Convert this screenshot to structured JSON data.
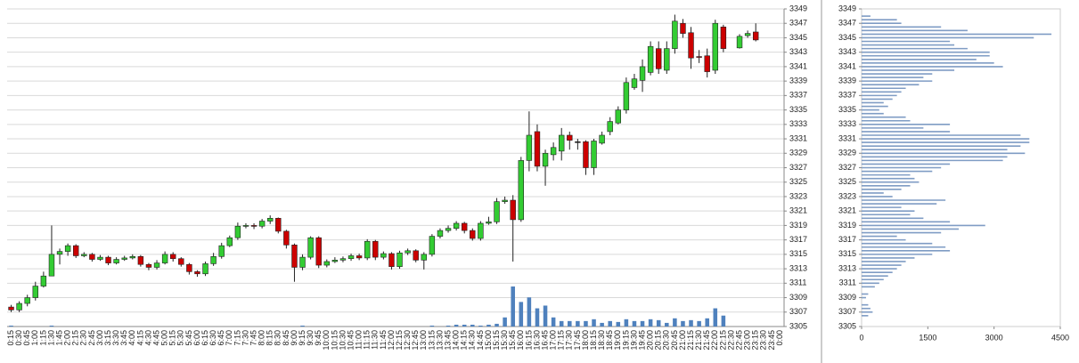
{
  "chart_data": [
    {
      "type": "candlestick",
      "categories": [
        "0:15",
        "0:30",
        "0:45",
        "1:00",
        "1:15",
        "1:30",
        "1:45",
        "2:00",
        "2:15",
        "2:30",
        "2:45",
        "3:00",
        "3:15",
        "3:30",
        "3:45",
        "4:00",
        "4:15",
        "4:30",
        "4:45",
        "5:00",
        "5:15",
        "5:30",
        "5:45",
        "6:00",
        "6:15",
        "6:30",
        "6:45",
        "7:00",
        "7:15",
        "7:30",
        "7:45",
        "8:00",
        "8:15",
        "8:30",
        "8:45",
        "9:00",
        "9:15",
        "9:30",
        "9:45",
        "10:00",
        "10:15",
        "10:30",
        "10:45",
        "11:00",
        "11:15",
        "11:30",
        "11:45",
        "12:00",
        "12:15",
        "12:30",
        "12:45",
        "13:00",
        "13:15",
        "13:30",
        "13:45",
        "14:00",
        "14:15",
        "14:30",
        "14:45",
        "15:00",
        "15:15",
        "15:30",
        "15:45",
        "16:00",
        "16:15",
        "16:30",
        "16:45",
        "17:00",
        "17:15",
        "17:30",
        "17:45",
        "18:00",
        "18:15",
        "18:30",
        "18:45",
        "19:00",
        "19:15",
        "19:30",
        "19:45",
        "20:00",
        "20:15",
        "20:30",
        "20:45",
        "21:00",
        "21:15",
        "21:30",
        "21:45",
        "22:00",
        "22:15",
        "22:30",
        "22:45",
        "23:00",
        "23:15",
        "23:30",
        "23:45",
        "0:00"
      ],
      "open": [
        3307.7,
        3307.3,
        3308.2,
        3309.0,
        3310.6,
        3312.0,
        3315.0,
        3315.4,
        3316.2,
        3314.8,
        3315.0,
        3314.3,
        3314.6,
        3313.8,
        3314.3,
        3314.5,
        3314.7,
        3313.6,
        3313.2,
        3313.8,
        3315.0,
        3314.4,
        3313.6,
        3312.6,
        3312.3,
        3313.7,
        3314.7,
        3316.2,
        3317.3,
        3318.9,
        3319.0,
        3318.9,
        3319.6,
        3320.0,
        3318.2,
        3316.3,
        3313.2,
        3314.6,
        3317.3,
        3313.5,
        3314.0,
        3314.2,
        3314.4,
        3314.8,
        3314.5,
        3316.8,
        3314.6,
        3315.1,
        3313.3,
        3315.2,
        3315.5,
        3314.2,
        3315.0,
        3317.5,
        3318.3,
        3318.6,
        3319.3,
        3318.3,
        3317.2,
        3319.3,
        3319.5,
        3322.3,
        3322.5,
        3319.8,
        3328.0,
        3332.0,
        3327.2,
        3328.8,
        3329.3,
        3331.5,
        3330.6,
        3330.6,
        3327.0,
        3330.4,
        3332.0,
        3333.2,
        3335.0,
        3338.1,
        3339.1,
        3340.2,
        3343.5,
        3340.5,
        3343.5,
        3347.0,
        3345.7,
        3342.4,
        3342.5,
        3340.5,
        3346.5,
        null,
        3343.6,
        3345.3,
        3345.8,
        null,
        null,
        null
      ],
      "high": [
        3308.0,
        3308.5,
        3309.4,
        3311.2,
        3312.6,
        3319.0,
        3315.8,
        3316.5,
        3316.4,
        3315.3,
        3315.2,
        3314.9,
        3314.8,
        3314.6,
        3314.8,
        3315.0,
        3314.9,
        3313.8,
        3314.2,
        3315.4,
        3315.3,
        3314.6,
        3313.8,
        3312.8,
        3314.0,
        3315.2,
        3316.6,
        3317.6,
        3319.4,
        3319.3,
        3319.3,
        3319.9,
        3320.4,
        3320.1,
        3318.4,
        3316.5,
        3315.0,
        3317.5,
        3317.5,
        3314.3,
        3314.6,
        3314.7,
        3315.1,
        3315.1,
        3317.1,
        3317.0,
        3315.4,
        3315.3,
        3315.5,
        3315.8,
        3315.7,
        3315.3,
        3317.8,
        3318.6,
        3319.0,
        3319.6,
        3319.5,
        3318.6,
        3319.6,
        3320.2,
        3322.8,
        3323.0,
        3323.2,
        3328.5,
        3334.8,
        3333.0,
        3329.5,
        3330.5,
        3332.5,
        3332.0,
        3331.0,
        3330.8,
        3331.0,
        3332.0,
        3334.0,
        3335.5,
        3339.5,
        3340.0,
        3342.0,
        3344.5,
        3344.5,
        3344.5,
        3348.2,
        3347.6,
        3346.5,
        3343.3,
        3343.5,
        3347.5,
        3346.8,
        null,
        3345.5,
        3346.0,
        3347.0,
        null,
        null,
        null
      ],
      "low": [
        3307.0,
        3307.0,
        3307.8,
        3308.6,
        3310.4,
        3312.0,
        3313.6,
        3314.8,
        3314.5,
        3314.6,
        3314.0,
        3314.1,
        3313.5,
        3313.6,
        3314.1,
        3314.3,
        3313.3,
        3312.8,
        3312.9,
        3313.6,
        3314.0,
        3313.3,
        3312.2,
        3311.9,
        3312.0,
        3313.4,
        3314.4,
        3316.0,
        3317.0,
        3318.6,
        3318.5,
        3318.6,
        3319.2,
        3317.9,
        3315.8,
        3311.2,
        3312.8,
        3314.3,
        3313.1,
        3313.2,
        3313.8,
        3313.9,
        3314.1,
        3314.2,
        3314.2,
        3314.2,
        3314.3,
        3312.9,
        3313.0,
        3314.9,
        3313.9,
        3312.9,
        3314.7,
        3317.2,
        3318.0,
        3318.3,
        3317.9,
        3316.9,
        3316.9,
        3319.1,
        3319.2,
        3322.0,
        3314.0,
        3319.5,
        3326.5,
        3326.5,
        3324.5,
        3328.0,
        3328.0,
        3329.5,
        3329.5,
        3326.0,
        3326.0,
        3330.2,
        3331.5,
        3333.0,
        3334.5,
        3337.8,
        3337.5,
        3339.8,
        3340.0,
        3340.0,
        3342.8,
        3345.0,
        3340.7,
        3341.5,
        3339.5,
        3340.0,
        3343.0,
        null,
        3343.5,
        3345.0,
        3344.5,
        null,
        null,
        null
      ],
      "close": [
        3307.3,
        3308.2,
        3309.0,
        3310.6,
        3312.0,
        3315.0,
        3315.4,
        3316.2,
        3314.8,
        3315.0,
        3314.3,
        3314.6,
        3313.8,
        3314.3,
        3314.5,
        3314.7,
        3313.6,
        3313.2,
        3313.8,
        3315.0,
        3314.4,
        3313.6,
        3312.6,
        3312.3,
        3313.7,
        3314.7,
        3316.2,
        3317.3,
        3318.9,
        3319.0,
        3318.9,
        3319.6,
        3320.0,
        3318.2,
        3316.3,
        3313.2,
        3314.6,
        3317.3,
        3313.5,
        3314.0,
        3314.2,
        3314.4,
        3314.8,
        3314.5,
        3316.8,
        3314.6,
        3315.1,
        3313.3,
        3315.2,
        3315.5,
        3314.2,
        3315.0,
        3317.5,
        3318.3,
        3318.6,
        3319.3,
        3318.3,
        3317.2,
        3319.3,
        3319.5,
        3322.3,
        3322.5,
        3319.8,
        3328.0,
        3331.5,
        3327.2,
        3329.0,
        3329.8,
        3331.5,
        3330.8,
        3330.6,
        3327.0,
        3330.7,
        3331.5,
        3333.4,
        3335.0,
        3338.8,
        3339.3,
        3341.0,
        3343.8,
        3340.7,
        3343.5,
        3347.3,
        3345.6,
        3342.2,
        3342.3,
        3340.3,
        3347.0,
        3343.5,
        null,
        3345.2,
        3345.6,
        3344.7,
        null,
        null,
        null
      ],
      "volume": [
        10,
        0,
        0,
        0,
        0,
        10,
        0,
        0,
        0,
        0,
        0,
        0,
        0,
        0,
        0,
        0,
        0,
        0,
        0,
        0,
        0,
        0,
        0,
        0,
        0,
        0,
        0,
        0,
        0,
        0,
        0,
        0,
        0,
        0,
        0,
        0,
        10,
        0,
        0,
        0,
        0,
        0,
        0,
        0,
        0,
        0,
        0,
        0,
        0,
        0,
        0,
        0,
        10,
        0,
        10,
        20,
        20,
        20,
        10,
        20,
        30,
        100,
        440,
        270,
        320,
        200,
        230,
        100,
        60,
        60,
        60,
        60,
        80,
        40,
        60,
        50,
        80,
        60,
        60,
        80,
        70,
        40,
        90,
        60,
        70,
        60,
        90,
        200,
        120,
        null,
        0,
        0,
        0,
        null,
        null,
        null
      ],
      "up_color": "#33cc33",
      "down_color": "#cc0000",
      "volume_color": "#4f81bd",
      "ylim": [
        3305,
        3349
      ],
      "yticks": [
        3305,
        3307,
        3309,
        3311,
        3313,
        3315,
        3317,
        3319,
        3321,
        3323,
        3325,
        3327,
        3329,
        3331,
        3333,
        3335,
        3337,
        3339,
        3341,
        3343,
        3345,
        3347,
        3349
      ],
      "grid": true
    },
    {
      "type": "profile",
      "y": [
        3306,
        3306.5,
        3307,
        3307.5,
        3308,
        3308.5,
        3309,
        3309.5,
        3310,
        3310.5,
        3311,
        3311.5,
        3312,
        3312.5,
        3313,
        3313.5,
        3314,
        3314.5,
        3315,
        3315.5,
        3316,
        3316.5,
        3317,
        3317.5,
        3318,
        3318.5,
        3319,
        3319.5,
        3320,
        3320.5,
        3321,
        3321.5,
        3322,
        3322.5,
        3323,
        3323.5,
        3324,
        3324.5,
        3325,
        3325.5,
        3326,
        3326.5,
        3327,
        3327.5,
        3328,
        3328.5,
        3329,
        3329.5,
        3330,
        3330.5,
        3331,
        3331.5,
        3332,
        3332.5,
        3333,
        3333.5,
        3334,
        3334.5,
        3335,
        3335.5,
        3336,
        3336.5,
        3337,
        3337.5,
        3338,
        3338.5,
        3339,
        3339.5,
        3340,
        3340.5,
        3341,
        3341.5,
        3342,
        3342.5,
        3343,
        3343.5,
        3344,
        3344.5,
        3345,
        3345.5,
        3346,
        3346.5,
        3347,
        3347.5,
        3348
      ],
      "values": [
        0,
        150,
        250,
        200,
        150,
        0,
        100,
        150,
        0,
        300,
        400,
        500,
        600,
        700,
        800,
        900,
        1000,
        1200,
        1600,
        2000,
        1900,
        1600,
        1000,
        800,
        1800,
        2200,
        2800,
        2000,
        1400,
        1100,
        1200,
        900,
        1700,
        1900,
        700,
        500,
        900,
        1100,
        1300,
        1200,
        1100,
        1600,
        1800,
        2000,
        3200,
        3300,
        3700,
        3300,
        3600,
        3800,
        3800,
        3600,
        2000,
        1400,
        2000,
        1100,
        1000,
        500,
        400,
        600,
        500,
        700,
        800,
        900,
        1000,
        1300,
        1600,
        1400,
        1600,
        2100,
        3200,
        3000,
        2600,
        2900,
        2900,
        2400,
        2100,
        2000,
        3900,
        4300,
        2400,
        1800,
        900,
        800,
        200
      ],
      "color": "#7f9cc4",
      "xlim": [
        0,
        4500
      ],
      "xticks": [
        0,
        1500,
        3000,
        4500
      ],
      "ylim": [
        3305,
        3349
      ],
      "yticks": [
        3305,
        3307,
        3309,
        3311,
        3313,
        3315,
        3317,
        3319,
        3321,
        3323,
        3325,
        3327,
        3329,
        3331,
        3333,
        3335,
        3337,
        3339,
        3341,
        3343,
        3345,
        3347,
        3349
      ]
    }
  ]
}
